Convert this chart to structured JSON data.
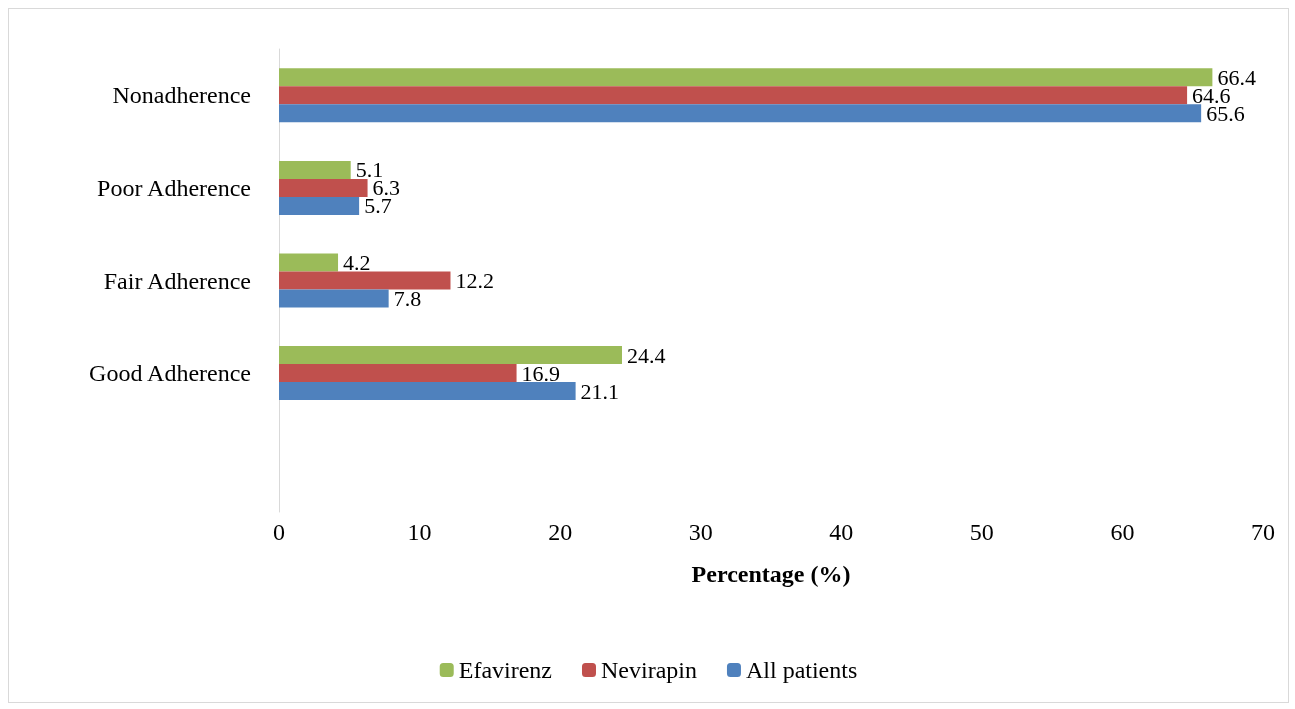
{
  "chart_data": {
    "type": "bar",
    "orientation": "horizontal",
    "xlabel": "Percentage (%)",
    "categories": [
      "Nonadherence",
      "Poor Adherence",
      "Fair Adherence",
      "Good Adherence",
      null
    ],
    "series": [
      {
        "name": "Efavirenz",
        "color": "#9bbb59",
        "values": [
          66.4,
          5.1,
          4.2,
          24.4,
          null
        ]
      },
      {
        "name": "Nevirapin",
        "color": "#c0504d",
        "values": [
          64.6,
          6.3,
          12.2,
          16.9,
          null
        ]
      },
      {
        "name": "All patients",
        "color": "#4f81bd",
        "values": [
          65.6,
          5.7,
          7.8,
          21.1,
          null
        ]
      }
    ],
    "xlim": [
      0,
      70
    ],
    "xticks": [
      0,
      10,
      20,
      30,
      40,
      50,
      60,
      70
    ],
    "grid": false,
    "legend": "bottom",
    "data_labels": true
  }
}
